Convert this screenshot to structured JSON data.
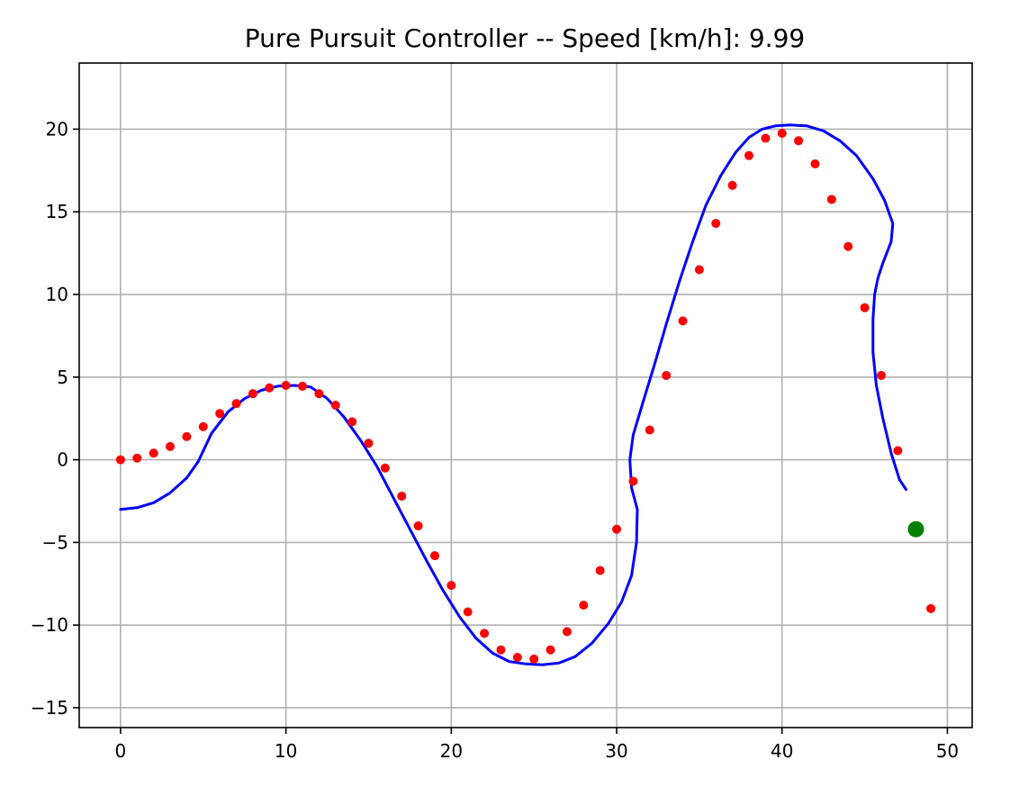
{
  "chart_data": {
    "type": "scatter",
    "title": "Pure Pursuit Controller -- Speed [km/h]: 9.99",
    "xlabel": "",
    "ylabel": "",
    "xlim": [
      -2.5,
      51.5
    ],
    "ylim": [
      -16.2,
      24.0
    ],
    "xticks": [
      0,
      10,
      20,
      30,
      40,
      50
    ],
    "yticks": [
      -15,
      -10,
      -5,
      0,
      5,
      10,
      15,
      20
    ],
    "xtick_labels": [
      "0",
      "10",
      "20",
      "30",
      "40",
      "50"
    ],
    "ytick_labels": [
      "−15",
      "−10",
      "−5",
      "0",
      "5",
      "10",
      "15",
      "20"
    ],
    "grid": true,
    "series": [
      {
        "kind": "scatter",
        "color": "#ff0000",
        "x": [
          0,
          1,
          2,
          3,
          4,
          5,
          6,
          7,
          8,
          9,
          10,
          11,
          12,
          13,
          14,
          15,
          16,
          17,
          18,
          19,
          20,
          21,
          22,
          23,
          24,
          25,
          26,
          27,
          28,
          29,
          30,
          31,
          32,
          33,
          34,
          35,
          36,
          37,
          38,
          39,
          40,
          41,
          42,
          43,
          44,
          45,
          46,
          47,
          49
        ],
        "y": [
          0.0,
          0.1,
          0.4,
          0.8,
          1.4,
          2.0,
          2.8,
          3.4,
          4.0,
          4.35,
          4.5,
          4.45,
          4.0,
          3.3,
          2.3,
          1.0,
          -0.5,
          -2.2,
          -4.0,
          -5.8,
          -7.6,
          -9.2,
          -10.5,
          -11.5,
          -11.95,
          -12.05,
          -11.5,
          -10.4,
          -8.8,
          -6.7,
          -4.2,
          -1.3,
          1.8,
          5.1,
          8.4,
          11.5,
          14.3,
          16.6,
          18.4,
          19.45,
          19.75,
          19.3,
          17.9,
          15.75,
          12.9,
          9.2,
          5.1,
          0.55,
          -9.0
        ]
      },
      {
        "kind": "line",
        "color": "#0000ff",
        "x": [
          0,
          1,
          2,
          3,
          4,
          4.7,
          5.5,
          6.5,
          7.5,
          8.5,
          9.5,
          10.5,
          11.5,
          12.5,
          13.5,
          14.5,
          15.5,
          16.5,
          17.5,
          18.5,
          19.5,
          20.5,
          21.5,
          22.5,
          23.5,
          24.5,
          25.5,
          26.5,
          27.5,
          28.5,
          29.5,
          30.3,
          30.9,
          31.2,
          31.25,
          30.9,
          30.8,
          31.0,
          31.6,
          32.3,
          33.0,
          33.8,
          34.6,
          35.4,
          36.3,
          37.2,
          38.0,
          38.8,
          39.6,
          40.5,
          41.5,
          42.5,
          43.5,
          44.5,
          45.5,
          46.2,
          46.7,
          46.6,
          46.1,
          45.8,
          45.6,
          45.5,
          45.5,
          45.7,
          46.1,
          46.6,
          47.1,
          47.5
        ],
        "y": [
          -3.0,
          -2.9,
          -2.6,
          -2.0,
          -1.1,
          -0.1,
          1.6,
          2.9,
          3.7,
          4.2,
          4.45,
          4.5,
          4.4,
          3.7,
          2.6,
          1.2,
          -0.4,
          -2.3,
          -4.2,
          -6.1,
          -7.9,
          -9.5,
          -10.8,
          -11.7,
          -12.2,
          -12.35,
          -12.4,
          -12.3,
          -11.9,
          -11.1,
          -9.9,
          -8.6,
          -7.0,
          -5.0,
          -3.0,
          -1.7,
          0.0,
          1.5,
          3.5,
          5.8,
          8.2,
          10.8,
          13.2,
          15.4,
          17.2,
          18.6,
          19.5,
          20.0,
          20.2,
          20.25,
          20.2,
          19.9,
          19.3,
          18.4,
          17.0,
          15.7,
          14.3,
          13.2,
          11.9,
          11.0,
          10.0,
          8.5,
          6.5,
          4.5,
          2.5,
          0.4,
          -1.2,
          -1.8
        ]
      },
      {
        "kind": "point",
        "color": "#008000",
        "x": [
          48.1
        ],
        "y": [
          -4.2
        ]
      }
    ]
  }
}
